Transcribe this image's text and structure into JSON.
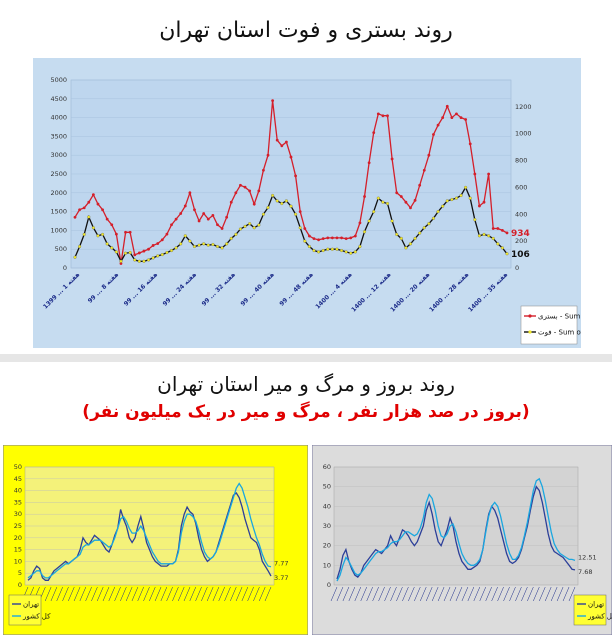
{
  "page": {
    "main_title": "روند بستری و فوت استان تهران",
    "section2_title": "روند بروز و مرگ و میر استان تهران",
    "section2_subtitle": "(بروز در صد هزار نفر ، مرگ و میر در یک میلیون نفر)"
  },
  "colors": {
    "main_bg": "#c6dcf0",
    "main_plot_bg": "#bed6ee",
    "series_hosp": "#d41f2a",
    "series_death": "#111111",
    "death_marker": "#f3e92a",
    "left_bg": "#ffff00",
    "left_plot_bg": "#f4f27a",
    "right_bg": "#dcdcdc",
    "right_plot_bg": "#d3d3d3",
    "series_tehran": "#2c3f99",
    "series_country": "#1aa7e0",
    "legend_bg": "#ffff33"
  },
  "chart_data": [
    {
      "type": "line",
      "title": "",
      "secondary_axis": true,
      "ylim": [
        0,
        5000
      ],
      "y2lim": [
        0,
        1400
      ],
      "yticks": [
        0,
        500,
        1000,
        1500,
        2000,
        2500,
        3000,
        3500,
        4000,
        4500,
        5000
      ],
      "y2ticks": [
        0,
        200,
        400,
        600,
        800,
        1000,
        1200
      ],
      "xtick_labels": [
        "1399 ... 1 هفته",
        "99 ... 8 هفته",
        "99 ... 16 هفته",
        "99 ... 24 هفته",
        "99 ... 32 هفته",
        "99 ... 40 هفته",
        "99 ... 48 هفته",
        "1400 ... 4 هفته",
        "1400 ... 12 هفته",
        "1400 ... 20 هفته",
        "1400 ... 28 هفته",
        "1400 ... 35 هفته"
      ],
      "legend_position": "right",
      "series": [
        {
          "name": "بستری - Sum of",
          "axis": "left",
          "end_label": "934",
          "values": [
            1350,
            1550,
            1600,
            1750,
            1950,
            1700,
            1550,
            1300,
            1150,
            900,
            120,
            950,
            950,
            350,
            400,
            450,
            500,
            600,
            650,
            750,
            900,
            1150,
            1300,
            1450,
            1650,
            2000,
            1550,
            1250,
            1450,
            1300,
            1400,
            1150,
            1050,
            1350,
            1750,
            2000,
            2200,
            2150,
            2050,
            1700,
            2050,
            2600,
            3000,
            4450,
            3400,
            3250,
            3350,
            2950,
            2450,
            1500,
            1050,
            850,
            780,
            750,
            780,
            800,
            800,
            800,
            800,
            780,
            800,
            850,
            1200,
            1900,
            2800,
            3600,
            4100,
            4050,
            4050,
            2900,
            2000,
            1900,
            1750,
            1600,
            1800,
            2200,
            2600,
            3000,
            3550,
            3800,
            4000,
            4300,
            4000,
            4100,
            4000,
            3950,
            3300,
            2500,
            1650,
            1750,
            2500,
            1050,
            1050,
            1000,
            934
          ]
        },
        {
          "name": "فوت - Sum of",
          "axis": "right",
          "end_label": "106",
          "values": [
            80,
            160,
            250,
            380,
            300,
            240,
            250,
            180,
            150,
            120,
            50,
            110,
            115,
            60,
            50,
            50,
            60,
            75,
            90,
            100,
            115,
            130,
            150,
            180,
            240,
            200,
            160,
            170,
            180,
            170,
            175,
            160,
            150,
            180,
            220,
            250,
            290,
            310,
            330,
            300,
            320,
            400,
            450,
            540,
            500,
            480,
            500,
            460,
            400,
            300,
            200,
            160,
            130,
            120,
            130,
            140,
            140,
            140,
            130,
            120,
            110,
            120,
            160,
            270,
            350,
            420,
            520,
            490,
            480,
            350,
            250,
            220,
            150,
            180,
            220,
            260,
            300,
            330,
            370,
            420,
            460,
            500,
            510,
            520,
            540,
            600,
            520,
            360,
            240,
            250,
            240,
            220,
            180,
            150,
            106
          ]
        }
      ]
    },
    {
      "type": "line",
      "title": "",
      "ylim": [
        0,
        50
      ],
      "yticks": [
        0,
        5,
        10,
        15,
        20,
        25,
        30,
        35,
        40,
        45,
        50
      ],
      "legend_position": "bottom-left",
      "series": [
        {
          "name": "تهران",
          "end_label": "3.77",
          "values": [
            2,
            3,
            6,
            8,
            7,
            3,
            2,
            2,
            4,
            6,
            7,
            8,
            9,
            10,
            9,
            10,
            11,
            12,
            15,
            20,
            18,
            17,
            19,
            21,
            20,
            19,
            17,
            15,
            14,
            17,
            21,
            24,
            32,
            28,
            25,
            20,
            18,
            20,
            25,
            29,
            24,
            18,
            15,
            12,
            10,
            9,
            8,
            8,
            8,
            9,
            9,
            10,
            15,
            25,
            30,
            33,
            31,
            30,
            26,
            20,
            15,
            12,
            10,
            11,
            12,
            14,
            18,
            22,
            26,
            30,
            34,
            38,
            39,
            37,
            33,
            28,
            24,
            20,
            19,
            18,
            15,
            10,
            8,
            6,
            3.77
          ]
        },
        {
          "name": "کل کشور",
          "end_label": "7.77",
          "values": [
            3,
            4,
            5,
            6,
            6,
            4,
            3,
            3,
            4,
            5,
            6,
            7,
            8,
            9,
            9,
            10,
            11,
            12,
            13,
            16,
            17,
            17,
            18,
            19,
            19,
            19,
            18,
            17,
            16,
            17,
            20,
            24,
            28,
            29,
            27,
            24,
            22,
            22,
            23,
            25,
            23,
            20,
            17,
            14,
            12,
            10,
            9,
            9,
            9,
            9,
            9,
            10,
            14,
            22,
            27,
            30,
            30,
            29,
            27,
            23,
            18,
            14,
            12,
            11,
            12,
            14,
            17,
            21,
            25,
            29,
            33,
            37,
            41,
            43,
            41,
            37,
            33,
            28,
            24,
            20,
            17,
            13,
            10,
            8,
            7.77
          ]
        }
      ]
    },
    {
      "type": "line",
      "title": "",
      "ylim": [
        0,
        60
      ],
      "yticks": [
        0,
        10,
        20,
        30,
        40,
        50,
        60
      ],
      "legend_position": "bottom-right",
      "series": [
        {
          "name": "تهران",
          "end_label": "7.68",
          "values": [
            3,
            8,
            15,
            18,
            12,
            8,
            5,
            4,
            6,
            10,
            12,
            14,
            16,
            18,
            17,
            16,
            18,
            20,
            25,
            22,
            20,
            24,
            28,
            27,
            25,
            22,
            20,
            22,
            26,
            30,
            38,
            42,
            36,
            28,
            22,
            20,
            24,
            28,
            34,
            30,
            22,
            16,
            12,
            10,
            8,
            8,
            9,
            10,
            12,
            18,
            28,
            36,
            40,
            38,
            34,
            28,
            22,
            16,
            12,
            11,
            12,
            14,
            18,
            24,
            30,
            38,
            45,
            50,
            48,
            42,
            34,
            26,
            20,
            17,
            16,
            15,
            14,
            12,
            10,
            8,
            7.68
          ]
        },
        {
          "name": "کل کشور",
          "end_label": "12.51",
          "values": [
            2,
            5,
            10,
            14,
            12,
            9,
            6,
            5,
            6,
            8,
            10,
            12,
            14,
            16,
            17,
            17,
            18,
            19,
            21,
            22,
            22,
            23,
            25,
            27,
            27,
            26,
            25,
            26,
            29,
            34,
            42,
            46,
            44,
            38,
            30,
            25,
            24,
            26,
            30,
            31,
            27,
            21,
            16,
            13,
            11,
            10,
            10,
            11,
            13,
            18,
            27,
            35,
            40,
            42,
            40,
            35,
            28,
            21,
            16,
            13,
            13,
            15,
            19,
            25,
            32,
            40,
            48,
            53,
            54,
            50,
            43,
            35,
            27,
            21,
            18,
            16,
            15,
            14,
            13,
            13,
            12.51
          ]
        }
      ]
    }
  ]
}
